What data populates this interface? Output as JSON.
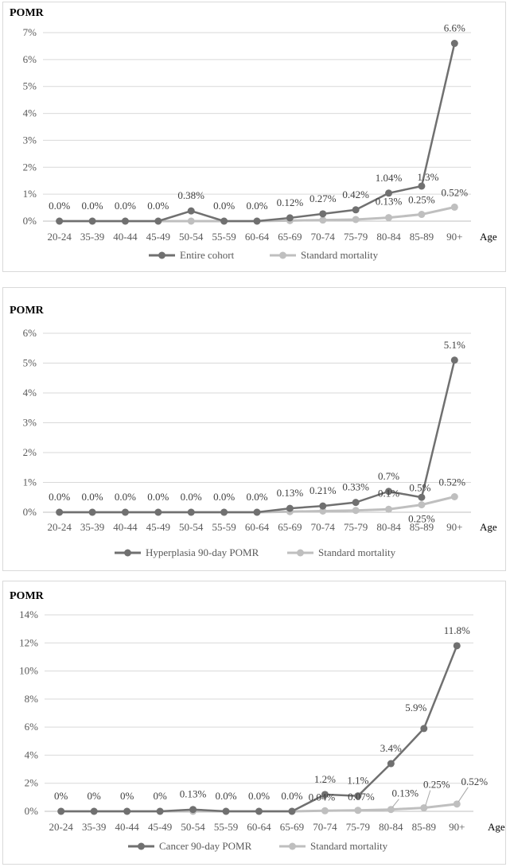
{
  "chart_data": [
    {
      "type": "line",
      "ylabel": "POMR",
      "xlabel": "Age",
      "categories": [
        "20-24",
        "35-39",
        "40-44",
        "45-49",
        "50-54",
        "55-59",
        "60-64",
        "65-69",
        "70-74",
        "75-79",
        "80-84",
        "85-89",
        "90+"
      ],
      "yticks": [
        "0%",
        "1%",
        "2%",
        "3%",
        "4%",
        "5%",
        "6%",
        "7%"
      ],
      "ylim": [
        0,
        7
      ],
      "grid": true,
      "legend": "bottom",
      "series": [
        {
          "name": "Entire cohort",
          "color": "#707070",
          "values": [
            0,
            0,
            0,
            0,
            0.38,
            0,
            0,
            0.12,
            0.27,
            0.42,
            1.04,
            1.3,
            6.6
          ],
          "labels": [
            "0.0%",
            "0.0%",
            "0.0%",
            "0.0%",
            "0.38%",
            "0.0%",
            "0.0%",
            "0.12%",
            "0.27%",
            "0.42%",
            "1.04%",
            "1.3%",
            "6.6%"
          ]
        },
        {
          "name": "Standard mortality",
          "color": "#bfbfbf",
          "values": [
            0,
            0,
            0,
            0,
            0,
            0,
            0,
            0.02,
            0.04,
            0.06,
            0.13,
            0.25,
            0.52
          ],
          "labels": [
            "",
            "",
            "",
            "",
            "",
            "",
            "",
            "",
            "",
            "",
            "0.13%",
            "0.25%",
            "0.52%"
          ]
        }
      ]
    },
    {
      "type": "line",
      "ylabel": "POMR",
      "xlabel": "Age",
      "categories": [
        "20-24",
        "35-39",
        "40-44",
        "45-49",
        "50-54",
        "55-59",
        "60-64",
        "65-69",
        "70-74",
        "75-79",
        "80-84",
        "85-89",
        "90+"
      ],
      "yticks": [
        "0%",
        "1%",
        "2%",
        "3%",
        "4%",
        "5%",
        "6%"
      ],
      "ylim": [
        0,
        6
      ],
      "grid": true,
      "legend": "bottom",
      "series": [
        {
          "name": "Hyperplasia 90-day POMR",
          "color": "#707070",
          "values": [
            0,
            0,
            0,
            0,
            0,
            0,
            0,
            0.13,
            0.21,
            0.33,
            0.7,
            0.5,
            5.1
          ],
          "labels": [
            "0.0%",
            "0.0%",
            "0.0%",
            "0.0%",
            "0.0%",
            "0.0%",
            "0.0%",
            "0.13%",
            "0.21%",
            "0.33%",
            "0.7%",
            "0.5%",
            "5.1%"
          ]
        },
        {
          "name": "Standard mortality",
          "color": "#bfbfbf",
          "values": [
            0,
            0,
            0,
            0,
            0,
            0,
            0,
            0.02,
            0.04,
            0.06,
            0.1,
            0.25,
            0.52
          ],
          "labels": [
            "",
            "",
            "",
            "",
            "",
            "",
            "",
            "",
            "",
            "",
            "0.1%",
            "0.25%",
            "0.52%"
          ]
        }
      ]
    },
    {
      "type": "line",
      "ylabel": "POMR",
      "xlabel": "Age",
      "categories": [
        "20-24",
        "35-39",
        "40-44",
        "45-49",
        "50-54",
        "55-59",
        "60-64",
        "65-69",
        "70-74",
        "75-79",
        "80-84",
        "85-89",
        "90+"
      ],
      "yticks": [
        "0%",
        "2%",
        "4%",
        "6%",
        "8%",
        "10%",
        "12%",
        "14%"
      ],
      "ylim": [
        0,
        14
      ],
      "grid": true,
      "legend": "bottom",
      "series": [
        {
          "name": "Cancer 90-day POMR",
          "color": "#707070",
          "values": [
            0,
            0,
            0,
            0,
            0.13,
            0,
            0,
            0,
            1.2,
            1.1,
            3.4,
            5.9,
            11.8
          ],
          "labels": [
            "0%",
            "0%",
            "0%",
            "0%",
            "0.13%",
            "0.0%",
            "0.0%",
            "0.0%",
            "1.2%",
            "1.1%",
            "3.4%",
            "5.9%",
            "11.8%"
          ]
        },
        {
          "name": "Standard mortality",
          "color": "#bfbfbf",
          "values": [
            0,
            0,
            0,
            0,
            0,
            0,
            0,
            0,
            0.04,
            0.07,
            0.13,
            0.25,
            0.52
          ],
          "labels": [
            "",
            "",
            "",
            "",
            "",
            "",
            "",
            "",
            "0.04%",
            "0.07%",
            "0.13%",
            "0.25%",
            "0.52%"
          ]
        }
      ]
    }
  ]
}
